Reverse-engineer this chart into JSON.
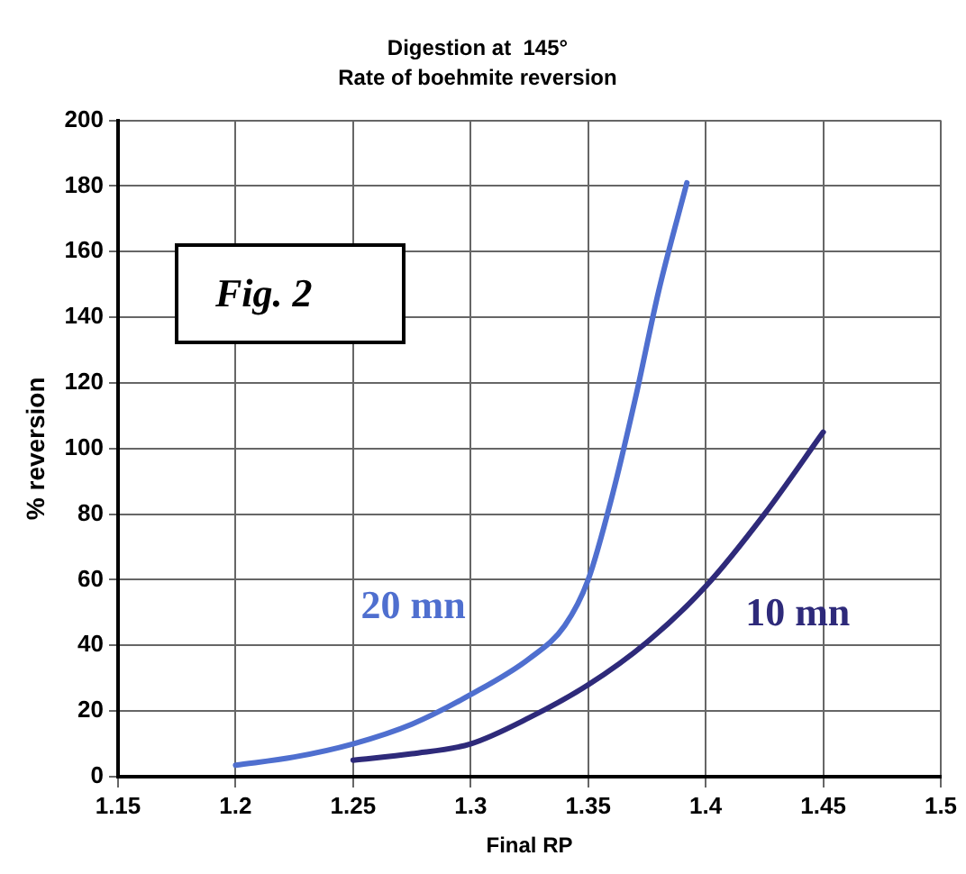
{
  "chart_data": {
    "type": "line",
    "title": "Digestion at  145°",
    "subtitle": "Rate of boehmite reversion",
    "xlabel": "Final RP",
    "ylabel": "% reversion",
    "xlim": [
      1.15,
      1.5
    ],
    "xticks": [
      1.15,
      1.2,
      1.25,
      1.3,
      1.35,
      1.4,
      1.45,
      1.5
    ],
    "ylim": [
      0,
      200
    ],
    "yticks": [
      0,
      20,
      40,
      60,
      80,
      100,
      120,
      140,
      160,
      180,
      200
    ],
    "grid": true,
    "legend": false,
    "marker": "none",
    "line_style": "solid",
    "annotations": [
      "Fig. 2"
    ],
    "series": [
      {
        "name": "20 mn",
        "color": "#4f6fcf",
        "x": [
          1.2,
          1.225,
          1.25,
          1.275,
          1.3,
          1.325,
          1.34,
          1.35,
          1.36,
          1.37,
          1.38,
          1.392
        ],
        "values": [
          3.5,
          6,
          10,
          16,
          25,
          36,
          46,
          60,
          85,
          115,
          148,
          181
        ]
      },
      {
        "name": "10 mn",
        "color": "#2e2a7a",
        "x": [
          1.25,
          1.275,
          1.3,
          1.325,
          1.35,
          1.375,
          1.4,
          1.425,
          1.45
        ],
        "values": [
          5,
          7,
          10,
          18,
          28,
          41,
          58,
          80,
          105
        ]
      }
    ]
  }
}
